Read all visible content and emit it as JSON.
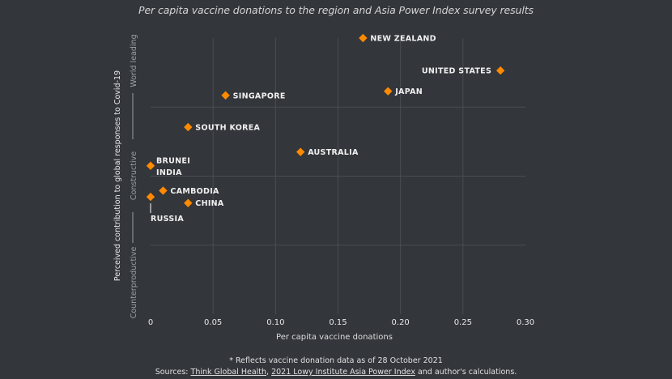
{
  "chart_data": {
    "type": "scatter",
    "title": "Per capita vaccine donations to the region and Asia Power Index survey results",
    "xlabel": "Per capita vaccine donations",
    "ylabel": "Perceived contribution to global responses to Covid-19",
    "xlim": [
      0,
      0.3
    ],
    "ylim": [
      0,
      4
    ],
    "x_ticks": [
      0,
      0.05,
      0.1,
      0.15,
      0.2,
      0.25,
      0.3
    ],
    "x_tick_labels": [
      "0",
      "0.05",
      "0.10",
      "0.15",
      "0.20",
      "0.25",
      "0.30"
    ],
    "y_categories": [
      "Counterproductive",
      "Constructive",
      "World leading"
    ],
    "grid": true,
    "marker_color": "#ff8a00",
    "points": [
      {
        "label": "NEW ZEALAND",
        "x": 0.17,
        "y": 4.0,
        "label_side": "right"
      },
      {
        "label": "UNITED STATES",
        "x": 0.28,
        "y": 3.53,
        "label_side": "left"
      },
      {
        "label": "JAPAN",
        "x": 0.19,
        "y": 3.23,
        "label_side": "right"
      },
      {
        "label": "SINGAPORE",
        "x": 0.06,
        "y": 3.17,
        "label_side": "right"
      },
      {
        "label": "SOUTH KOREA",
        "x": 0.03,
        "y": 2.71,
        "label_side": "right"
      },
      {
        "label": "AUSTRALIA",
        "x": 0.12,
        "y": 2.35,
        "label_side": "right"
      },
      {
        "label": "BRUNEI",
        "x": 0,
        "y": 2.15,
        "label_side": "right-top"
      },
      {
        "label": "INDIA",
        "x": 0,
        "y": 2.15,
        "label_side": "right-bottom"
      },
      {
        "label": "CAMBODIA",
        "x": 0.01,
        "y": 1.79,
        "label_side": "right"
      },
      {
        "label": "CHINA",
        "x": 0.03,
        "y": 1.61,
        "label_side": "right"
      },
      {
        "label": "RUSSIA",
        "x": 0,
        "y": 1.7,
        "label_side": "below"
      }
    ]
  },
  "footnote": {
    "note": "* Reflects vaccine donation data as of 28 October 2021",
    "sources_prefix": "Sources: ",
    "link1": "Think Global Health",
    "sep": ", ",
    "link2": "2021 Lowy Institute Asia Power Index",
    "suffix": " and author's calculations."
  }
}
